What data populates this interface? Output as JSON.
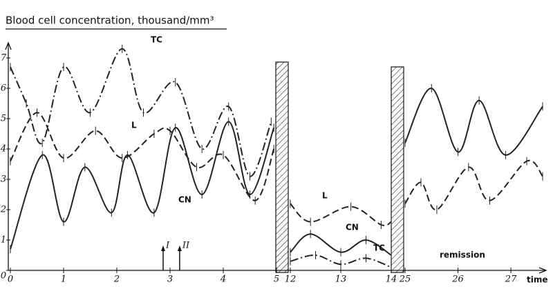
{
  "chart_data": [
    {
      "type": "line",
      "title": "Blood cell concentration, thousand/mm³",
      "ylim": [
        0,
        7.5
      ],
      "yticks": [
        0,
        1,
        2,
        3,
        4,
        5,
        6,
        7
      ],
      "xlim": [
        0,
        5
      ],
      "xticks": [
        0,
        1,
        2,
        3,
        4,
        5
      ],
      "series": [
        {
          "name": "TC",
          "color": "#222222",
          "dash": "dashdot",
          "x": [
            0,
            0.3,
            0.6,
            1.0,
            1.5,
            2.1,
            2.5,
            3.1,
            3.6,
            4.1,
            4.5,
            4.9
          ],
          "values": [
            6.7,
            5.5,
            4.2,
            6.7,
            5.2,
            7.3,
            5.2,
            6.2,
            4.0,
            5.4,
            3.1,
            4.9
          ]
        },
        {
          "name": "L",
          "color": "#222222",
          "dash": "dash",
          "x": [
            0,
            0.5,
            1.0,
            1.6,
            2.1,
            2.7,
            3.0,
            3.5,
            4.0,
            4.6,
            4.95
          ],
          "values": [
            3.6,
            5.2,
            3.7,
            4.6,
            3.7,
            4.5,
            4.6,
            3.4,
            3.8,
            2.3,
            4.0
          ]
        },
        {
          "name": "CN",
          "color": "#222222",
          "dash": "solid",
          "x": [
            0,
            0.6,
            1.0,
            1.4,
            1.9,
            2.2,
            2.7,
            3.1,
            3.6,
            4.1,
            4.5,
            4.95
          ],
          "values": [
            0.7,
            3.8,
            1.6,
            3.4,
            1.9,
            3.8,
            1.9,
            4.7,
            2.5,
            4.9,
            2.5,
            4.7
          ]
        }
      ],
      "annotations": [
        {
          "text": "I",
          "x": 2.87
        },
        {
          "text": "II",
          "x": 3.18
        }
      ]
    },
    {
      "type": "line",
      "xlim": [
        12,
        14
      ],
      "xticks": [
        12,
        13,
        14
      ],
      "series": [
        {
          "name": "L",
          "color": "#222222",
          "dash": "dash",
          "x": [
            12.0,
            12.4,
            13.2,
            13.8,
            14.0
          ],
          "values": [
            2.2,
            1.6,
            2.1,
            1.5,
            1.6
          ]
        },
        {
          "name": "CN",
          "color": "#222222",
          "dash": "solid",
          "x": [
            12.0,
            12.4,
            13.0,
            13.5,
            14.0
          ],
          "values": [
            0.6,
            1.2,
            0.6,
            1.0,
            0.5
          ]
        },
        {
          "name": "TC",
          "color": "#222222",
          "dash": "dashdot",
          "x": [
            12.0,
            12.5,
            13.0,
            13.5,
            14.0
          ],
          "values": [
            0.3,
            0.5,
            0.2,
            0.4,
            0.1
          ]
        }
      ]
    },
    {
      "type": "line",
      "xlim": [
        25,
        27.6
      ],
      "xticks": [
        25,
        26,
        27
      ],
      "xlabel": "time",
      "note": "remission",
      "series": [
        {
          "name": "CN",
          "color": "#222222",
          "dash": "solid",
          "x": [
            25.0,
            25.5,
            26.0,
            26.4,
            26.9,
            27.6
          ],
          "values": [
            4.2,
            6.0,
            3.9,
            5.6,
            3.8,
            5.4
          ]
        },
        {
          "name": "L",
          "color": "#222222",
          "dash": "dash",
          "x": [
            25.0,
            25.3,
            25.6,
            26.2,
            26.6,
            27.3,
            27.6
          ],
          "values": [
            2.2,
            2.9,
            2.0,
            3.4,
            2.3,
            3.6,
            3.1
          ]
        }
      ]
    }
  ]
}
